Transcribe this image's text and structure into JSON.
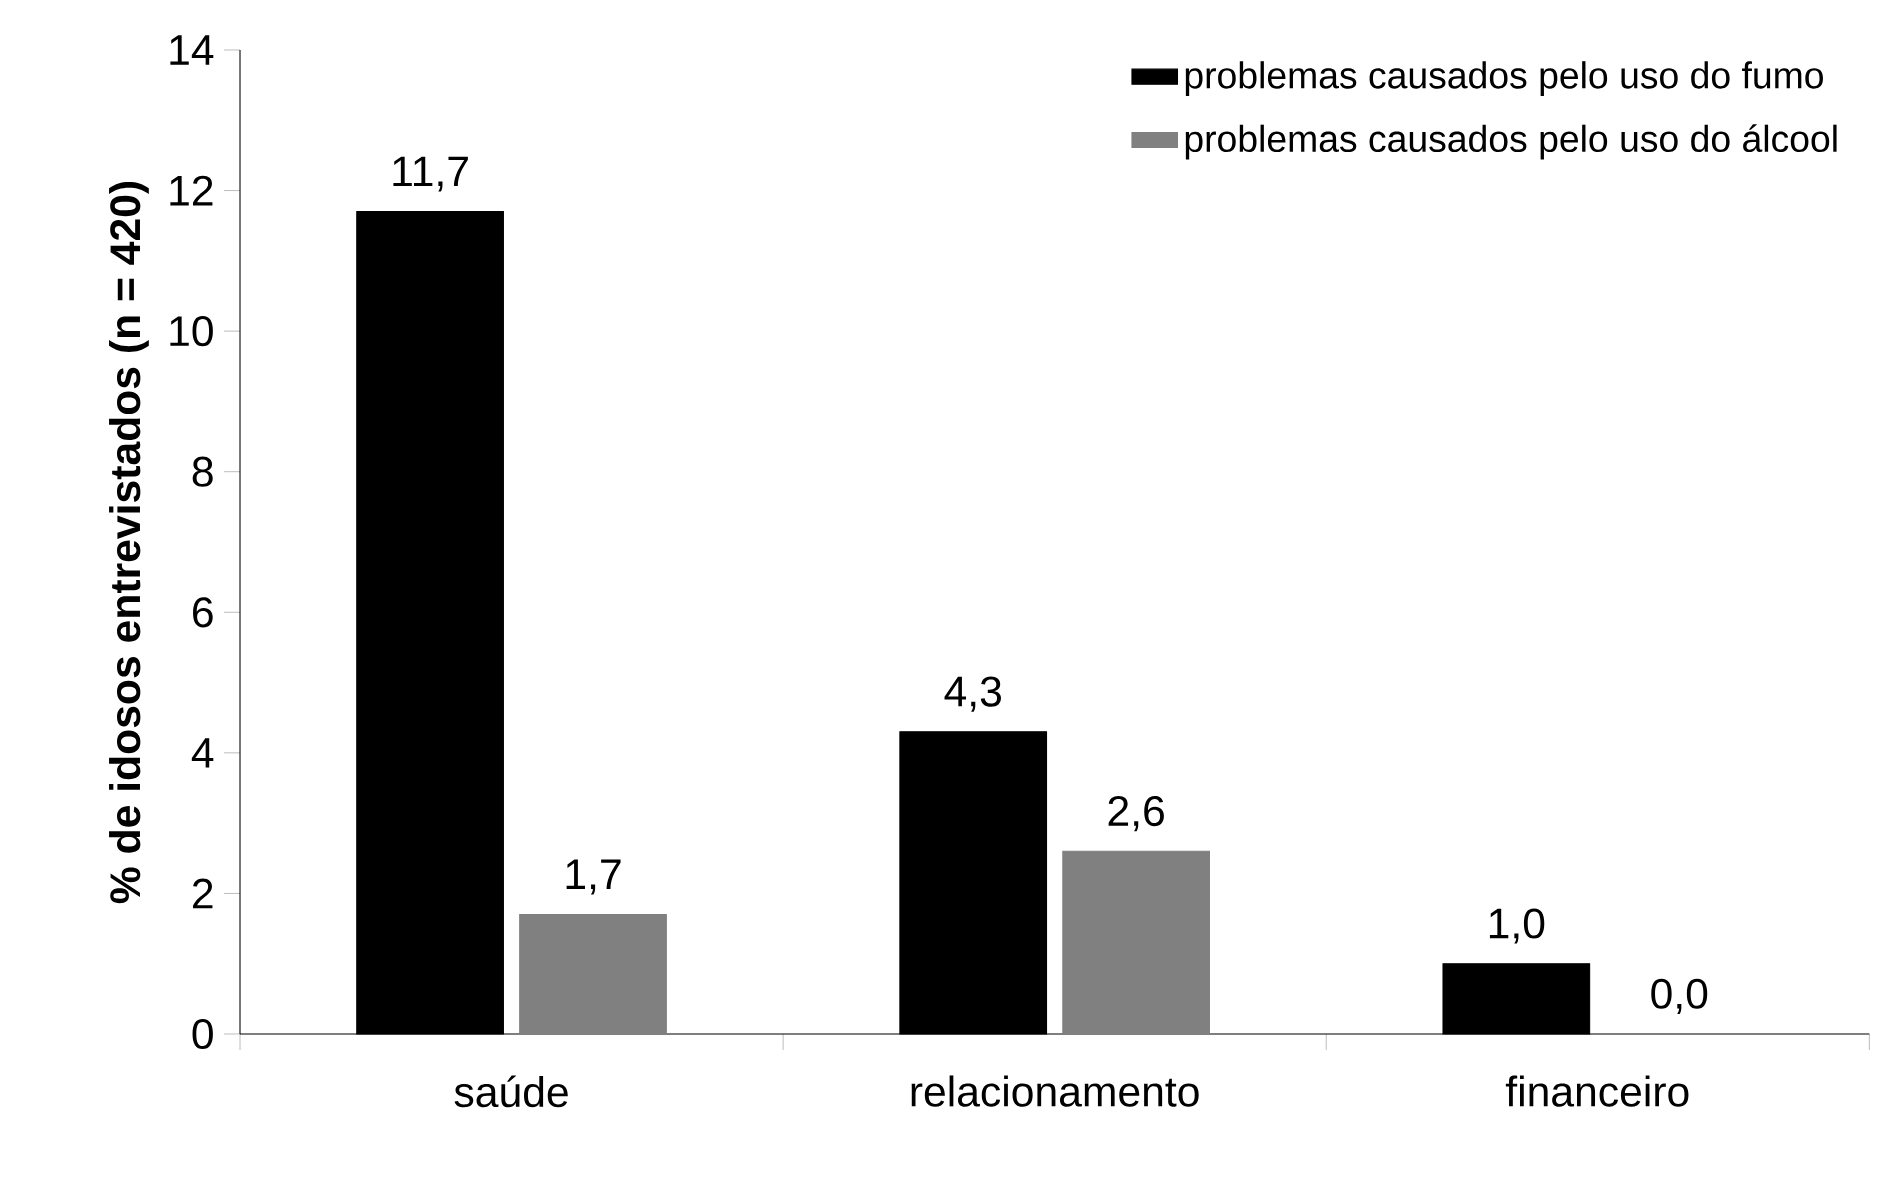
{
  "chart_data": {
    "type": "bar",
    "ylabel": "% de idosos entrevistados (n = 420)",
    "categories": [
      "saúde",
      "relacionamento",
      "financeiro"
    ],
    "series": [
      {
        "name": "problemas causados pelo uso do fumo",
        "color": "#000000",
        "values": [
          11.7,
          4.3,
          1.0
        ],
        "value_labels": [
          "11,7",
          "4,3",
          "1,0"
        ]
      },
      {
        "name": "problemas causados pelo uso do álcool",
        "color": "#808080",
        "values": [
          1.7,
          2.6,
          0.0
        ],
        "value_labels": [
          "1,7",
          "2,6",
          "0,0"
        ]
      }
    ],
    "ylim": [
      0,
      14
    ],
    "yticks": [
      0,
      2,
      4,
      6,
      8,
      10,
      12,
      14
    ],
    "legend": "top right"
  }
}
